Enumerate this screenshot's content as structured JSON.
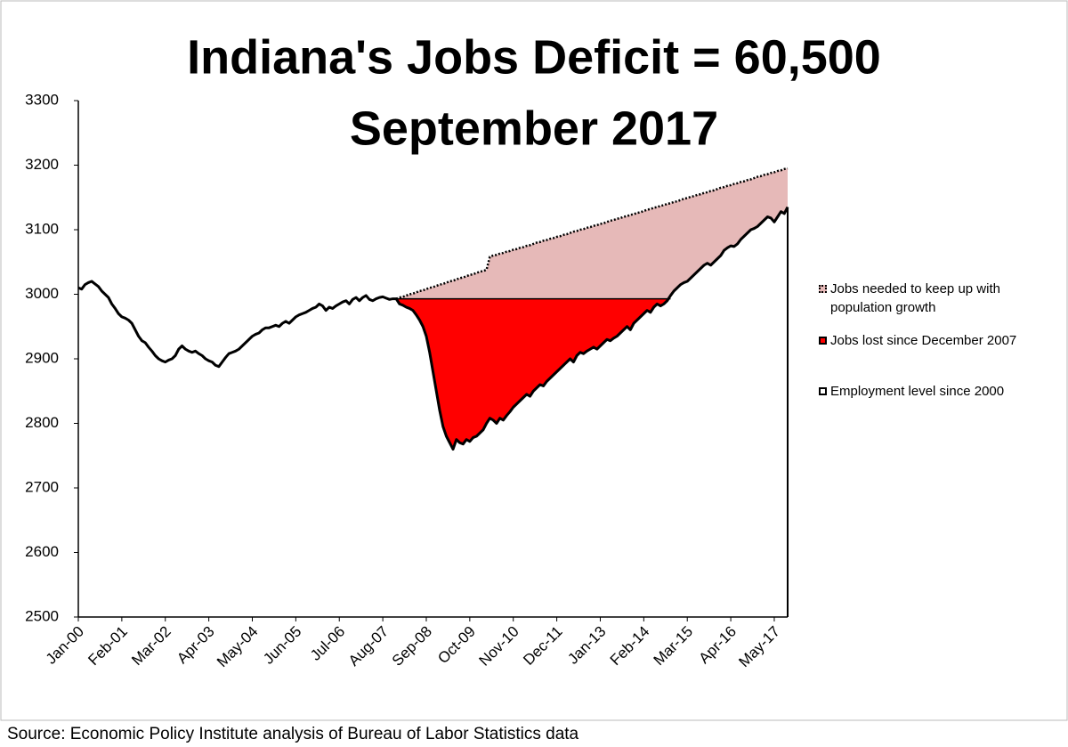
{
  "chart_data": {
    "type": "line",
    "title": "Indiana's Jobs Deficit = 60,500",
    "subtitle": "September 2017",
    "source": "Source: Economic Policy Institute analysis of Bureau of Labor Statistics data",
    "categories": [
      "Jan-00",
      null,
      null,
      null,
      null,
      null,
      null,
      null,
      null,
      null,
      null,
      null,
      null,
      "Feb-01",
      null,
      null,
      null,
      null,
      null,
      null,
      null,
      null,
      null,
      null,
      null,
      null,
      "Mar-02",
      null,
      null,
      null,
      null,
      null,
      null,
      null,
      null,
      null,
      null,
      null,
      null,
      "Apr-03",
      null,
      null,
      null,
      null,
      null,
      null,
      null,
      null,
      null,
      null,
      null,
      null,
      "May-04",
      null,
      null,
      null,
      null,
      null,
      null,
      null,
      null,
      null,
      null,
      null,
      null,
      "Jun-05",
      null,
      null,
      null,
      null,
      null,
      null,
      null,
      null,
      null,
      null,
      null,
      null,
      "Jul-06",
      null,
      null,
      null,
      null,
      null,
      null,
      null,
      null,
      null,
      null,
      null,
      null,
      "Aug-07",
      null,
      null,
      null,
      null,
      null,
      null,
      null,
      null,
      null,
      null,
      null,
      null,
      "Sep-08",
      null,
      null,
      null,
      null,
      null,
      null,
      null,
      null,
      null,
      null,
      null,
      null,
      "Oct-09",
      null,
      null,
      null,
      null,
      null,
      null,
      null,
      null,
      null,
      null,
      null,
      null,
      "Nov-10",
      null,
      null,
      null,
      null,
      null,
      null,
      null,
      null,
      null,
      null,
      null,
      null,
      "Dec-11",
      null,
      null,
      null,
      null,
      null,
      null,
      null,
      null,
      null,
      null,
      null,
      null,
      "Jan-13",
      null,
      null,
      null,
      null,
      null,
      null,
      null,
      null,
      null,
      null,
      null,
      null,
      "Feb-14",
      null,
      null,
      null,
      null,
      null,
      null,
      null,
      null,
      null,
      null,
      null,
      null,
      "Mar-15",
      null,
      null,
      null,
      null,
      null,
      null,
      null,
      null,
      null,
      null,
      null,
      null,
      "Apr-16",
      null,
      null,
      null,
      null,
      null,
      null,
      null,
      null,
      null,
      null,
      null,
      null,
      "May-17",
      null,
      null,
      null,
      null
    ],
    "series": [
      {
        "name": "Jobs needed to keep up with population growth",
        "color": "#e6b9b8",
        "line_color": "#000000",
        "line_style": "dotted",
        "values": [
          null,
          null,
          null,
          null,
          null,
          null,
          null,
          null,
          null,
          null,
          null,
          null,
          null,
          null,
          null,
          null,
          null,
          null,
          null,
          null,
          null,
          null,
          null,
          null,
          null,
          null,
          null,
          null,
          null,
          null,
          null,
          null,
          null,
          null,
          null,
          null,
          null,
          null,
          null,
          null,
          null,
          null,
          null,
          null,
          null,
          null,
          null,
          null,
          null,
          null,
          null,
          null,
          null,
          null,
          null,
          null,
          null,
          null,
          null,
          null,
          null,
          null,
          null,
          null,
          null,
          null,
          null,
          null,
          null,
          null,
          null,
          null,
          null,
          null,
          null,
          null,
          null,
          null,
          null,
          null,
          null,
          null,
          null,
          null,
          null,
          null,
          null,
          null,
          null,
          null,
          null,
          null,
          null,
          null,
          null,
          2993,
          2995,
          2996,
          2998,
          3000,
          3001,
          3003,
          3005,
          3006,
          3008,
          3010,
          3011,
          3013,
          3015,
          3016,
          3018,
          3020,
          3021,
          3023,
          3025,
          3026,
          3028,
          3030,
          3031,
          3033,
          3035,
          3036,
          3038,
          3058,
          3060,
          3061,
          3063,
          3064,
          3066,
          3067,
          3069,
          3070,
          3072,
          3073,
          3075,
          3076,
          3078,
          3080,
          3081,
          3083,
          3084,
          3086,
          3087,
          3089,
          3090,
          3092,
          3093,
          3095,
          3097,
          3098,
          3100,
          3101,
          3103,
          3104,
          3106,
          3107,
          3109,
          3110,
          3112,
          3114,
          3115,
          3117,
          3118,
          3120,
          3121,
          3123,
          3124,
          3126,
          3127,
          3129,
          3131,
          3132,
          3134,
          3135,
          3137,
          3138,
          3140,
          3141,
          3143,
          3144,
          3146,
          3148,
          3149,
          3151,
          3152,
          3154,
          3155,
          3157,
          3158,
          3160,
          3161,
          3163,
          3165,
          3166,
          3168,
          3169,
          3171,
          3172,
          3174,
          3175,
          3177,
          3178,
          3180,
          3182,
          3183,
          3185,
          3186,
          3188,
          3189,
          3191,
          3192,
          3194,
          3195
        ]
      },
      {
        "name": "Employment level since 2000",
        "color": "#000000",
        "values": [
          3010,
          3008,
          3015,
          3018,
          3020,
          3016,
          3012,
          3005,
          3000,
          2995,
          2985,
          2978,
          2970,
          2965,
          2963,
          2960,
          2955,
          2945,
          2935,
          2928,
          2925,
          2918,
          2912,
          2905,
          2900,
          2897,
          2895,
          2898,
          2900,
          2905,
          2915,
          2920,
          2915,
          2912,
          2910,
          2912,
          2908,
          2905,
          2900,
          2897,
          2895,
          2890,
          2888,
          2895,
          2902,
          2908,
          2910,
          2912,
          2915,
          2920,
          2925,
          2930,
          2935,
          2938,
          2940,
          2945,
          2948,
          2948,
          2950,
          2952,
          2950,
          2955,
          2958,
          2955,
          2960,
          2965,
          2968,
          2970,
          2972,
          2975,
          2978,
          2980,
          2985,
          2982,
          2975,
          2980,
          2978,
          2982,
          2985,
          2988,
          2990,
          2985,
          2992,
          2995,
          2990,
          2995,
          2998,
          2992,
          2990,
          2993,
          2995,
          2996,
          2994,
          2992,
          2993,
          2993,
          2985,
          2983,
          2980,
          2978,
          2975,
          2968,
          2960,
          2950,
          2935,
          2910,
          2880,
          2850,
          2820,
          2795,
          2780,
          2770,
          2760,
          2775,
          2770,
          2768,
          2775,
          2772,
          2778,
          2780,
          2785,
          2790,
          2800,
          2808,
          2805,
          2800,
          2808,
          2805,
          2812,
          2818,
          2825,
          2830,
          2835,
          2840,
          2845,
          2842,
          2850,
          2855,
          2860,
          2858,
          2865,
          2870,
          2875,
          2880,
          2885,
          2890,
          2895,
          2900,
          2895,
          2905,
          2910,
          2908,
          2912,
          2915,
          2918,
          2915,
          2920,
          2925,
          2930,
          2928,
          2932,
          2935,
          2940,
          2945,
          2950,
          2945,
          2955,
          2960,
          2965,
          2970,
          2975,
          2972,
          2980,
          2985,
          2982,
          2985,
          2990,
          2998,
          3005,
          3010,
          3015,
          3018,
          3020,
          3025,
          3030,
          3035,
          3040,
          3045,
          3048,
          3045,
          3050,
          3055,
          3060,
          3068,
          3072,
          3075,
          3074,
          3078,
          3085,
          3090,
          3095,
          3100,
          3102,
          3105,
          3110,
          3115,
          3120,
          3118,
          3112,
          3120,
          3128,
          3125,
          3135
        ]
      }
    ],
    "shortfall": {
      "name": "Jobs lost since December 2007",
      "color": "#ff0000"
    },
    "ylim": [
      2500,
      3300
    ],
    "yticks": [
      2500,
      2600,
      2700,
      2800,
      2900,
      3000,
      3100,
      3200,
      3300
    ]
  }
}
